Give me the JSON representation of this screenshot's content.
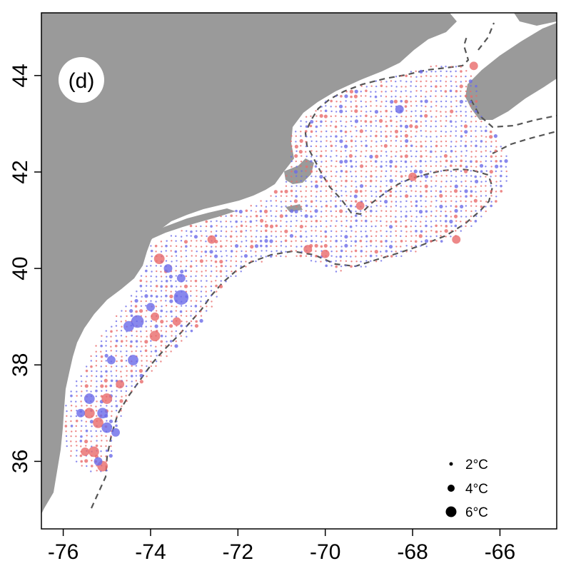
{
  "panel_label": "(d)",
  "colors": {
    "land": "#9a9a9a",
    "ocean": "#ffffff",
    "positive": "#e86a6a",
    "negative": "#6a6ae8",
    "contour": "#555555"
  },
  "chart_data": {
    "type": "scatter",
    "xlim": [
      -76.5,
      -64.7
    ],
    "ylim": [
      34.6,
      45.3
    ],
    "x_ticks": [
      -76,
      -74,
      -72,
      -70,
      -68,
      -66
    ],
    "x_tick_labels": [
      "-76",
      "-74",
      "-72",
      "-70",
      "-68",
      "-66"
    ],
    "y_ticks": [
      36,
      38,
      40,
      42,
      44
    ],
    "y_tick_labels": [
      "36",
      "38",
      "40",
      "42",
      "44"
    ],
    "legend": {
      "placement": "bottom-right",
      "entries": [
        {
          "label": "2°C",
          "value": 2
        },
        {
          "label": "4°C",
          "value": 4
        },
        {
          "label": "6°C",
          "value": 6
        }
      ]
    },
    "highlighted_points": [
      {
        "lon": -73.3,
        "lat": 39.4,
        "value": 6,
        "sign": "negative"
      },
      {
        "lon": -74.3,
        "lat": 38.9,
        "value": 5,
        "sign": "negative"
      },
      {
        "lon": -74.5,
        "lat": 38.8,
        "value": 4,
        "sign": "negative"
      },
      {
        "lon": -74.4,
        "lat": 38.1,
        "value": 4,
        "sign": "negative"
      },
      {
        "lon": -73.9,
        "lat": 38.6,
        "value": 4,
        "sign": "positive"
      },
      {
        "lon": -75.4,
        "lat": 37.3,
        "value": 4,
        "sign": "negative"
      },
      {
        "lon": -75.0,
        "lat": 37.3,
        "value": 4,
        "sign": "positive"
      },
      {
        "lon": -75.4,
        "lat": 37.0,
        "value": 4,
        "sign": "positive"
      },
      {
        "lon": -75.1,
        "lat": 37.0,
        "value": 4,
        "sign": "negative"
      },
      {
        "lon": -75.2,
        "lat": 36.8,
        "value": 4,
        "sign": "positive"
      },
      {
        "lon": -75.0,
        "lat": 36.7,
        "value": 4,
        "sign": "negative"
      },
      {
        "lon": -75.3,
        "lat": 36.2,
        "value": 4,
        "sign": "positive"
      },
      {
        "lon": -75.1,
        "lat": 35.9,
        "value": 4,
        "sign": "positive"
      },
      {
        "lon": -73.8,
        "lat": 40.2,
        "value": 4,
        "sign": "positive"
      },
      {
        "lon": -73.9,
        "lat": 39.0,
        "value": 3,
        "sign": "positive"
      },
      {
        "lon": -73.3,
        "lat": 39.8,
        "value": 3,
        "sign": "negative"
      },
      {
        "lon": -73.4,
        "lat": 38.9,
        "value": 3,
        "sign": "positive"
      },
      {
        "lon": -74.7,
        "lat": 37.6,
        "value": 3,
        "sign": "positive"
      },
      {
        "lon": -74.8,
        "lat": 36.6,
        "value": 3,
        "sign": "negative"
      },
      {
        "lon": -72.6,
        "lat": 40.6,
        "value": 3,
        "sign": "positive"
      },
      {
        "lon": -66.6,
        "lat": 44.2,
        "value": 3,
        "sign": "positive"
      },
      {
        "lon": -67.0,
        "lat": 40.6,
        "value": 3,
        "sign": "positive"
      },
      {
        "lon": -68.0,
        "lat": 41.9,
        "value": 3,
        "sign": "positive"
      },
      {
        "lon": -69.2,
        "lat": 41.3,
        "value": 3,
        "sign": "positive"
      },
      {
        "lon": -70.0,
        "lat": 40.3,
        "value": 3,
        "sign": "positive"
      },
      {
        "lon": -70.4,
        "lat": 40.4,
        "value": 3,
        "sign": "positive"
      },
      {
        "lon": -68.3,
        "lat": 43.3,
        "value": 3,
        "sign": "negative"
      },
      {
        "lon": -73.6,
        "lat": 40.0,
        "value": 3,
        "sign": "negative"
      },
      {
        "lon": -74.0,
        "lat": 39.2,
        "value": 3,
        "sign": "negative"
      },
      {
        "lon": -75.5,
        "lat": 36.2,
        "value": 3,
        "sign": "positive"
      },
      {
        "lon": -75.2,
        "lat": 36.0,
        "value": 3,
        "sign": "negative"
      },
      {
        "lon": -75.6,
        "lat": 37.0,
        "value": 3,
        "sign": "negative"
      },
      {
        "lon": -74.9,
        "lat": 38.1,
        "value": 3,
        "sign": "negative"
      }
    ]
  }
}
